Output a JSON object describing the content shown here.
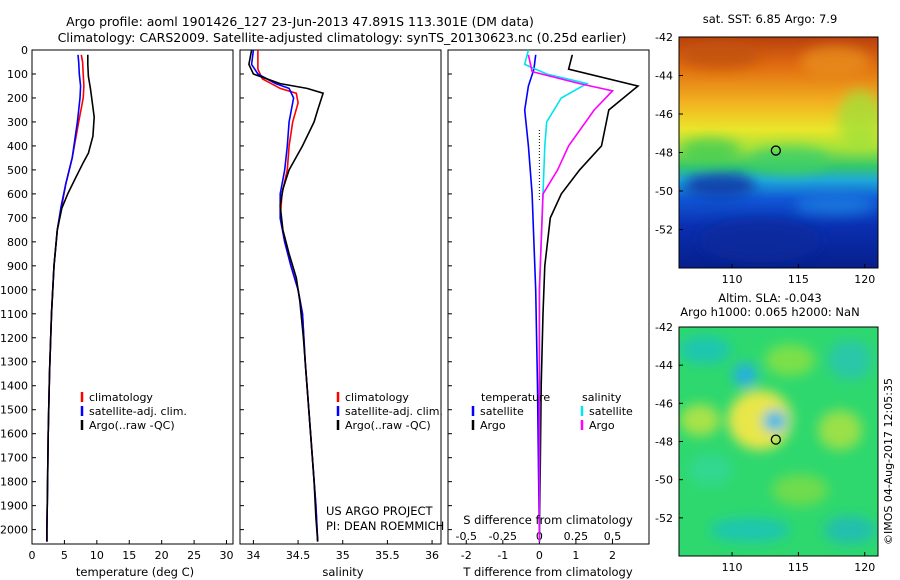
{
  "header": {
    "line1": "Argo profile: aoml 1901426_127 23-Jun-2013 47.891S 113.301E (DM data)",
    "line2": "Climatology: CARS2009. Satellite-adjusted climatology: synTS_20130623.nc (0.25d earlier)"
  },
  "colors": {
    "climatology": "#ff0000",
    "satellite": "#0000ff",
    "argo": "#000000",
    "salinity_satellite": "#00e5ee",
    "salinity_argo": "#ff00ff"
  },
  "chart_data": [
    {
      "type": "line",
      "name": "temperature-profile",
      "xlabel": "temperature (deg C)",
      "ylabel": "",
      "xlim": [
        0,
        31
      ],
      "ylim": [
        2060,
        0
      ],
      "y_reversed": true,
      "xticks": [
        "0",
        "5",
        "10",
        "15",
        "20",
        "25",
        "30"
      ],
      "yticks": [
        "0",
        "100",
        "200",
        "300",
        "400",
        "500",
        "600",
        "700",
        "800",
        "900",
        "1000",
        "1100",
        "1200",
        "1300",
        "1400",
        "1500",
        "1600",
        "1700",
        "1800",
        "1900",
        "2000"
      ],
      "legend": [
        "climatology",
        "satellite-adj. clim.",
        "Argo(..raw -QC)"
      ],
      "series": [
        {
          "name": "climatology",
          "color": "#ff0000",
          "points": [
            [
              7.6,
              20
            ],
            [
              7.8,
              50
            ],
            [
              7.9,
              100
            ],
            [
              8.0,
              150
            ],
            [
              7.9,
              200
            ],
            [
              7.2,
              300
            ],
            [
              6.2,
              450
            ],
            [
              5.2,
              560
            ],
            [
              4.6,
              650
            ],
            [
              3.9,
              750
            ],
            [
              3.4,
              900
            ],
            [
              3.0,
              1100
            ],
            [
              2.7,
              1350
            ],
            [
              2.5,
              1600
            ],
            [
              2.4,
              1800
            ],
            [
              2.3,
              2000
            ],
            [
              2.3,
              2050
            ]
          ]
        },
        {
          "name": "satellite-adj. clim.",
          "color": "#0000ff",
          "points": [
            [
              7.1,
              20
            ],
            [
              7.2,
              50
            ],
            [
              7.3,
              100
            ],
            [
              7.5,
              150
            ],
            [
              7.4,
              200
            ],
            [
              7.0,
              300
            ],
            [
              6.2,
              450
            ],
            [
              5.2,
              560
            ],
            [
              4.5,
              650
            ],
            [
              3.9,
              750
            ],
            [
              3.4,
              900
            ],
            [
              3.0,
              1100
            ],
            [
              2.7,
              1350
            ],
            [
              2.5,
              1600
            ],
            [
              2.4,
              1800
            ],
            [
              2.3,
              2000
            ],
            [
              2.3,
              2050
            ]
          ]
        },
        {
          "name": "Argo(..raw -QC)",
          "color": "#000000",
          "points": [
            [
              8.6,
              20
            ],
            [
              8.6,
              60
            ],
            [
              8.7,
              110
            ],
            [
              9.0,
              160
            ],
            [
              9.2,
              200
            ],
            [
              9.6,
              280
            ],
            [
              9.4,
              360
            ],
            [
              8.7,
              430
            ],
            [
              7.9,
              470
            ],
            [
              6.6,
              540
            ],
            [
              5.5,
              600
            ],
            [
              4.6,
              660
            ],
            [
              3.9,
              750
            ],
            [
              3.4,
              900
            ],
            [
              3.0,
              1100
            ],
            [
              2.7,
              1350
            ],
            [
              2.5,
              1600
            ],
            [
              2.4,
              1800
            ],
            [
              2.3,
              2000
            ],
            [
              2.3,
              2050
            ]
          ]
        }
      ]
    },
    {
      "type": "line",
      "name": "salinity-profile",
      "xlabel": "salinity",
      "ylabel": "",
      "xlim": [
        33.85,
        36.1
      ],
      "ylim": [
        2060,
        0
      ],
      "y_reversed": true,
      "xticks": [
        "34",
        "34.5",
        "35",
        "35.5",
        "36"
      ],
      "legend": [
        "climatology",
        "satellite-adj. clim.",
        "Argo(..raw -QC)"
      ],
      "annotation_lines": [
        "US ARGO PROJECT",
        "PI: DEAN ROEMMICH"
      ],
      "series": [
        {
          "name": "climatology",
          "color": "#ff0000",
          "points": [
            [
              34.05,
              0
            ],
            [
              34.05,
              80
            ],
            [
              34.1,
              120
            ],
            [
              34.3,
              160
            ],
            [
              34.48,
              180
            ],
            [
              34.5,
              220
            ],
            [
              34.44,
              300
            ],
            [
              34.4,
              400
            ],
            [
              34.38,
              500
            ],
            [
              34.32,
              600
            ],
            [
              34.3,
              700
            ],
            [
              34.35,
              800
            ],
            [
              34.42,
              900
            ],
            [
              34.5,
              1000
            ],
            [
              34.55,
              1100
            ],
            [
              34.58,
              1300
            ],
            [
              34.62,
              1500
            ],
            [
              34.66,
              1700
            ],
            [
              34.7,
              1900
            ],
            [
              34.72,
              2050
            ]
          ]
        },
        {
          "name": "satellite-adj. clim.",
          "color": "#0000ff",
          "points": [
            [
              34.0,
              0
            ],
            [
              33.98,
              60
            ],
            [
              34.05,
              100
            ],
            [
              34.25,
              140
            ],
            [
              34.4,
              160
            ],
            [
              34.45,
              200
            ],
            [
              34.4,
              300
            ],
            [
              34.38,
              400
            ],
            [
              34.35,
              500
            ],
            [
              34.3,
              600
            ],
            [
              34.3,
              700
            ],
            [
              34.35,
              800
            ],
            [
              34.42,
              900
            ],
            [
              34.5,
              1000
            ],
            [
              34.55,
              1100
            ],
            [
              34.58,
              1300
            ],
            [
              34.62,
              1500
            ],
            [
              34.66,
              1700
            ],
            [
              34.7,
              1900
            ],
            [
              34.72,
              2050
            ]
          ]
        },
        {
          "name": "Argo(..raw -QC)",
          "color": "#000000",
          "points": [
            [
              33.98,
              0
            ],
            [
              33.95,
              60
            ],
            [
              34.0,
              100
            ],
            [
              34.3,
              140
            ],
            [
              34.6,
              160
            ],
            [
              34.78,
              180
            ],
            [
              34.72,
              250
            ],
            [
              34.68,
              300
            ],
            [
              34.55,
              400
            ],
            [
              34.4,
              500
            ],
            [
              34.33,
              580
            ],
            [
              34.3,
              650
            ],
            [
              34.33,
              750
            ],
            [
              34.4,
              850
            ],
            [
              34.48,
              950
            ],
            [
              34.52,
              1050
            ],
            [
              34.56,
              1200
            ],
            [
              34.6,
              1400
            ],
            [
              34.64,
              1600
            ],
            [
              34.68,
              1800
            ],
            [
              34.7,
              1950
            ],
            [
              34.72,
              2050
            ]
          ]
        }
      ]
    },
    {
      "type": "line",
      "name": "difference-from-climatology",
      "xlabel": "T difference from climatology",
      "xlabel_top": "S difference from climatology",
      "xlim": [
        -2.5,
        3.0
      ],
      "ylim": [
        2060,
        0
      ],
      "y_reversed": true,
      "xticks_bottom": [
        "-2",
        "-1",
        "0",
        "1",
        "2"
      ],
      "xticks_top": [
        "-0.5",
        "-0.25",
        "0",
        "0.25",
        "0.5"
      ],
      "legend_groups": [
        {
          "title": "temperature",
          "items": [
            "satellite",
            "Argo"
          ]
        },
        {
          "title": "salinity",
          "items": [
            "satellite",
            "Argo"
          ]
        }
      ],
      "series": [
        {
          "name": "temperature satellite",
          "color": "#0000ff",
          "points": [
            [
              -0.1,
              20
            ],
            [
              -0.15,
              80
            ],
            [
              -0.3,
              150
            ],
            [
              -0.4,
              250
            ],
            [
              -0.3,
              400
            ],
            [
              -0.2,
              600
            ],
            [
              -0.15,
              800
            ],
            [
              -0.1,
              1000
            ],
            [
              -0.05,
              1400
            ],
            [
              0,
              2050
            ]
          ]
        },
        {
          "name": "temperature Argo",
          "color": "#000000",
          "points": [
            [
              0.9,
              20
            ],
            [
              0.8,
              80
            ],
            [
              2.7,
              150
            ],
            [
              1.9,
              250
            ],
            [
              1.7,
              400
            ],
            [
              1.1,
              500
            ],
            [
              0.6,
              600
            ],
            [
              0.3,
              700
            ],
            [
              0.15,
              900
            ],
            [
              0.1,
              1100
            ],
            [
              0.05,
              1400
            ],
            [
              0,
              2050
            ]
          ]
        },
        {
          "name": "salinity satellite",
          "color": "#00e5ee",
          "points": [
            [
              -0.3,
              0
            ],
            [
              -0.4,
              60
            ],
            [
              0.2,
              100
            ],
            [
              1.3,
              140
            ],
            [
              0.6,
              200
            ],
            [
              0.2,
              300
            ],
            [
              0.15,
              400
            ],
            [
              0.1,
              600
            ],
            [
              0.05,
              800
            ],
            [
              0,
              1000
            ],
            [
              0,
              2050
            ]
          ]
        },
        {
          "name": "salinity Argo",
          "color": "#ff00ff",
          "points": [
            [
              -0.3,
              20
            ],
            [
              -0.2,
              90
            ],
            [
              1.1,
              140
            ],
            [
              2.0,
              170
            ],
            [
              1.5,
              250
            ],
            [
              0.8,
              400
            ],
            [
              0.5,
              500
            ],
            [
              0.1,
              600
            ],
            [
              0.05,
              800
            ],
            [
              0,
              1000
            ],
            [
              0,
              2050
            ]
          ]
        }
      ]
    },
    {
      "type": "heatmap",
      "name": "sst-map",
      "title": "sat. SST: 6.85 Argo: 7.9",
      "xlim": [
        106,
        121
      ],
      "ylim": [
        -54,
        -42
      ],
      "xticks": [
        "110",
        "115",
        "120"
      ],
      "yticks": [
        "-42",
        "-44",
        "-46",
        "-48",
        "-50",
        "-52"
      ],
      "marker": {
        "lon": 113.3,
        "lat": -47.9
      }
    },
    {
      "type": "heatmap",
      "name": "sla-map",
      "title_line1": "Altim. SLA: -0.043",
      "title_line2": "Argo h1000: 0.065 h2000: NaN",
      "xlim": [
        106,
        121
      ],
      "ylim": [
        -54,
        -42
      ],
      "xticks": [
        "110",
        "115",
        "120"
      ],
      "yticks": [
        "-42",
        "-44",
        "-46",
        "-48",
        "-50",
        "-52"
      ],
      "marker": {
        "lon": 113.3,
        "lat": -47.9
      }
    }
  ],
  "stamp": "©IMOS 04-Aug-2017 12:05:35"
}
